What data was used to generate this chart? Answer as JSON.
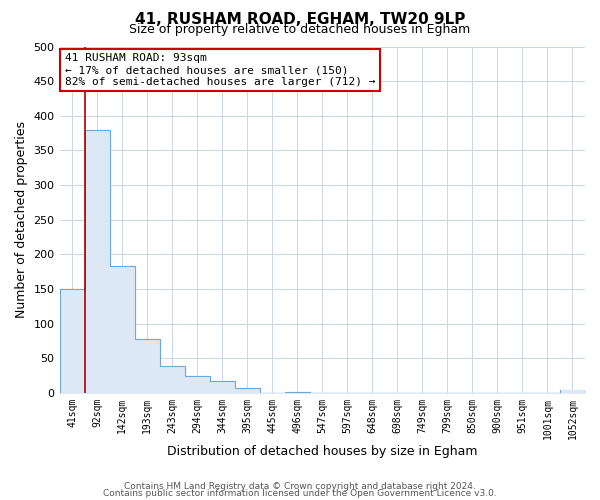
{
  "title": "41, RUSHAM ROAD, EGHAM, TW20 9LP",
  "subtitle": "Size of property relative to detached houses in Egham",
  "xlabel": "Distribution of detached houses by size in Egham",
  "ylabel": "Number of detached properties",
  "bar_labels": [
    "41sqm",
    "92sqm",
    "142sqm",
    "193sqm",
    "243sqm",
    "294sqm",
    "344sqm",
    "395sqm",
    "445sqm",
    "496sqm",
    "547sqm",
    "597sqm",
    "648sqm",
    "698sqm",
    "749sqm",
    "799sqm",
    "850sqm",
    "900sqm",
    "951sqm",
    "1001sqm",
    "1052sqm"
  ],
  "bar_values": [
    150,
    380,
    183,
    78,
    39,
    25,
    17,
    7,
    0,
    2,
    0,
    0,
    0,
    0,
    0,
    0,
    0,
    0,
    0,
    0,
    4
  ],
  "bar_fill_color": "#dce9f5",
  "bar_edge_color": "#6fa8d6",
  "marker_line_color": "#aa0000",
  "marker_at_index": 1,
  "ylim": [
    0,
    500
  ],
  "yticks": [
    0,
    50,
    100,
    150,
    200,
    250,
    300,
    350,
    400,
    450,
    500
  ],
  "annotation_title": "41 RUSHAM ROAD: 93sqm",
  "annotation_line1": "← 17% of detached houses are smaller (150)",
  "annotation_line2": "82% of semi-detached houses are larger (712) →",
  "annotation_box_color": "#ffffff",
  "annotation_box_edge": "#cc0000",
  "footer1": "Contains HM Land Registry data © Crown copyright and database right 2024.",
  "footer2": "Contains public sector information licensed under the Open Government Licence v3.0.",
  "background_color": "#ffffff",
  "grid_color": "#c8d8e8"
}
